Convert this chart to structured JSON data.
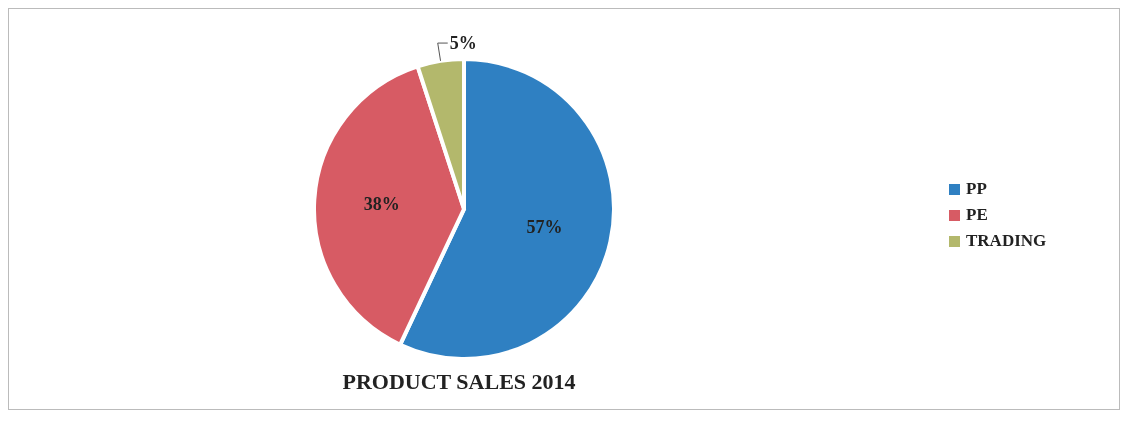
{
  "chart_data": {
    "type": "pie",
    "title": "PRODUCT SALES 2014",
    "categories": [
      "PP",
      "PE",
      "TRADING"
    ],
    "values": [
      57,
      38,
      5
    ],
    "colors": [
      "#2f80c2",
      "#d75b64",
      "#b3b86c"
    ],
    "value_labels": [
      "57%",
      "38%",
      "5%"
    ],
    "legend": "right"
  }
}
